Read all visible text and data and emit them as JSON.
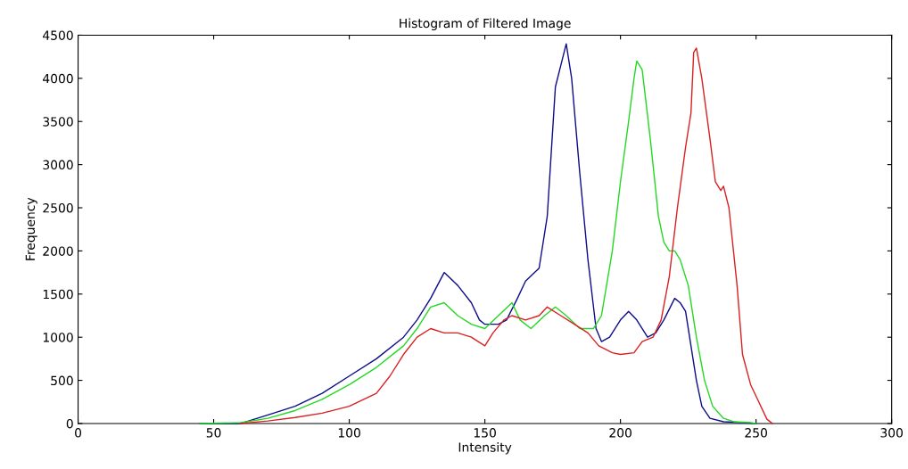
{
  "chart_data": {
    "type": "line",
    "title": "Histogram of Filtered Image",
    "xlabel": "Intensity",
    "ylabel": "Frequency",
    "xlim": [
      0,
      300
    ],
    "xticks": [
      0,
      50,
      100,
      150,
      200,
      250,
      300
    ],
    "ylim": [
      0,
      4500
    ],
    "yticks": [
      0,
      500,
      1000,
      1500,
      2000,
      2500,
      3000,
      3500,
      4000,
      4500
    ],
    "grid": false,
    "marker": "none",
    "line_style": "solid",
    "series": [
      {
        "color": "#0c0c8a",
        "x": [
          45,
          60,
          65,
          70,
          80,
          90,
          100,
          110,
          120,
          125,
          130,
          135,
          140,
          145,
          148,
          150,
          155,
          158,
          162,
          165,
          170,
          173,
          176,
          178,
          180,
          182,
          185,
          188,
          191,
          193,
          196,
          200,
          203,
          206,
          210,
          213,
          216,
          220,
          222,
          224,
          226,
          228,
          230,
          233,
          238,
          245,
          250
        ],
        "values": [
          0,
          0,
          50,
          100,
          200,
          350,
          550,
          750,
          1000,
          1200,
          1450,
          1750,
          1600,
          1400,
          1200,
          1150,
          1150,
          1200,
          1450,
          1650,
          1800,
          2400,
          3900,
          4150,
          4400,
          4000,
          2900,
          1900,
          1100,
          950,
          1000,
          1200,
          1300,
          1200,
          1000,
          1050,
          1200,
          1450,
          1400,
          1300,
          900,
          500,
          200,
          60,
          20,
          10,
          0
        ]
      },
      {
        "color": "#22d822",
        "x": [
          45,
          60,
          70,
          80,
          90,
          100,
          110,
          120,
          125,
          130,
          135,
          140,
          145,
          150,
          155,
          160,
          163,
          167,
          172,
          176,
          180,
          185,
          190,
          193,
          197,
          200,
          203,
          205,
          206,
          208,
          211,
          214,
          216,
          218,
          220,
          222,
          225,
          228,
          231,
          234,
          238,
          242,
          248,
          250
        ],
        "values": [
          0,
          10,
          60,
          150,
          280,
          450,
          650,
          900,
          1100,
          1350,
          1400,
          1250,
          1150,
          1100,
          1250,
          1400,
          1200,
          1100,
          1250,
          1350,
          1250,
          1100,
          1100,
          1250,
          2000,
          2800,
          3500,
          4000,
          4200,
          4100,
          3300,
          2400,
          2100,
          2000,
          2000,
          1900,
          1600,
          1000,
          500,
          200,
          60,
          20,
          10,
          0
        ]
      },
      {
        "color": "#d82020",
        "x": [
          60,
          70,
          80,
          90,
          100,
          110,
          115,
          120,
          125,
          130,
          135,
          140,
          145,
          150,
          153,
          157,
          160,
          165,
          170,
          173,
          178,
          183,
          188,
          192,
          197,
          200,
          205,
          208,
          212,
          215,
          218,
          221,
          224,
          226,
          227,
          228,
          230,
          233,
          235,
          237,
          238,
          240,
          243,
          245,
          248,
          251,
          254,
          256
        ],
        "values": [
          0,
          30,
          70,
          120,
          200,
          350,
          550,
          800,
          1000,
          1100,
          1050,
          1050,
          1000,
          900,
          1050,
          1200,
          1250,
          1200,
          1250,
          1350,
          1250,
          1150,
          1050,
          900,
          820,
          800,
          820,
          950,
          1000,
          1200,
          1700,
          2500,
          3200,
          3600,
          4300,
          4350,
          4000,
          3300,
          2800,
          2700,
          2750,
          2500,
          1600,
          800,
          450,
          250,
          50,
          0
        ]
      }
    ]
  }
}
